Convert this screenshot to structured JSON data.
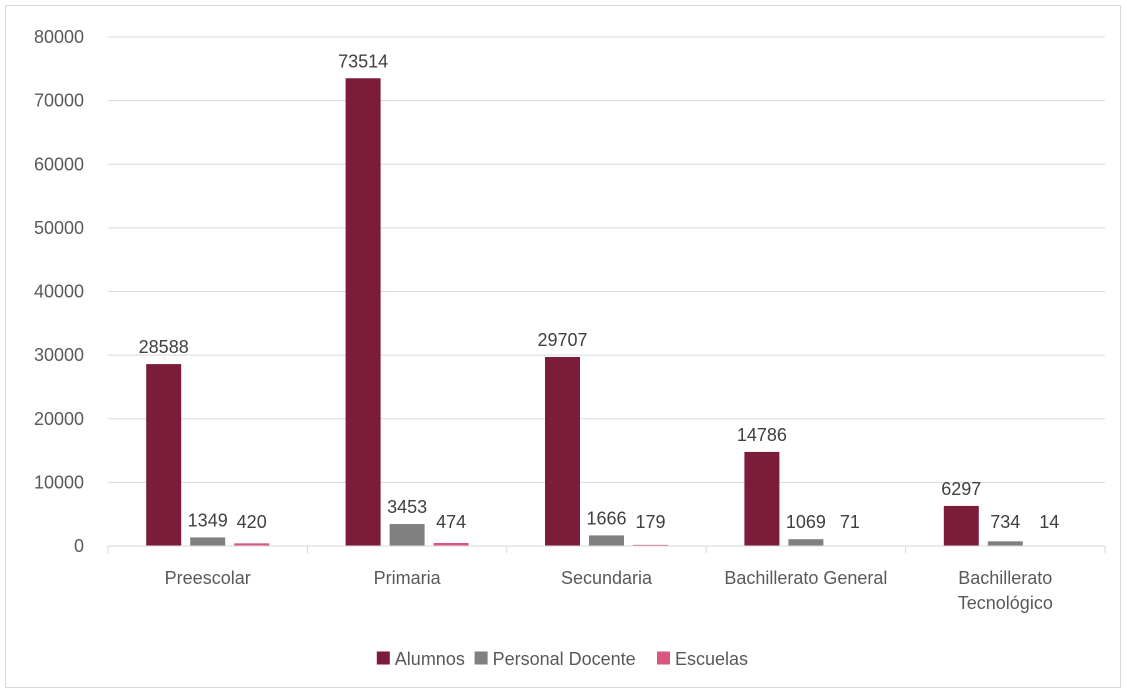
{
  "chart_data": {
    "type": "bar",
    "title": "",
    "xlabel": "",
    "ylabel": "",
    "ylim": [
      0,
      80000
    ],
    "yticks": [
      0,
      10000,
      20000,
      30000,
      40000,
      50000,
      60000,
      70000,
      80000
    ],
    "grid": true,
    "legend_position": "bottom",
    "categories": [
      [
        "Preescolar"
      ],
      [
        "Primaria"
      ],
      [
        "Secundaria"
      ],
      [
        "Bachillerato General"
      ],
      [
        "Bachillerato",
        "Tecnológico"
      ]
    ],
    "series": [
      {
        "name": "Alumnos",
        "color": "#7b1c38",
        "values": [
          28588,
          73514,
          29707,
          14786,
          6297
        ]
      },
      {
        "name": "Personal Docente",
        "color": "#808080",
        "values": [
          1349,
          3453,
          1666,
          1069,
          734
        ]
      },
      {
        "name": "Escuelas",
        "color": "#d9577e",
        "values": [
          420,
          474,
          179,
          71,
          14
        ]
      }
    ]
  }
}
